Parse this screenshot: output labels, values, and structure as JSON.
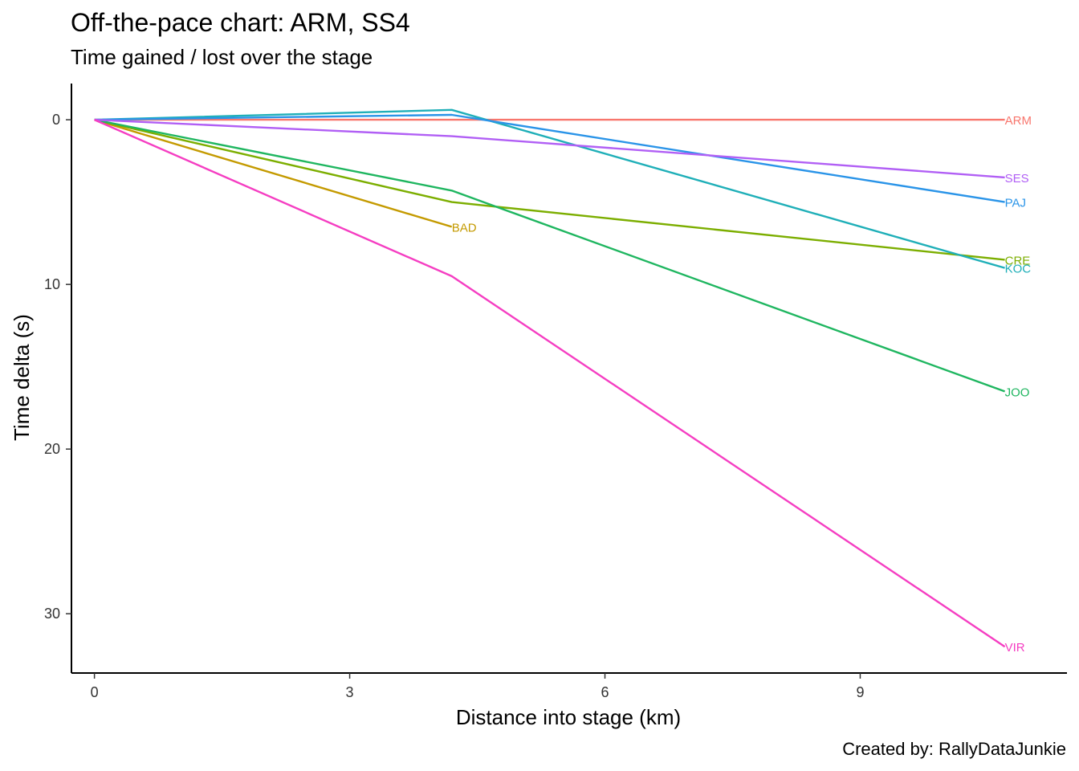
{
  "chart_data": {
    "type": "line",
    "title": "Off-the-pace chart: ARM, SS4",
    "subtitle": "Time gained / lost over the stage",
    "caption": "Created by: RallyDataJunkie",
    "xlabel": "Distance into stage (km)",
    "ylabel": "Time delta (s)",
    "xlim": [
      -0.27,
      11.43
    ],
    "ylim": [
      -2.2,
      33.6
    ],
    "y_reversed": true,
    "x_ticks": [
      0,
      3,
      6,
      9
    ],
    "y_ticks": [
      0,
      10,
      20,
      30
    ],
    "grid": false,
    "legend": "none",
    "series": [
      {
        "name": "ARM",
        "color": "#F8766D",
        "x": [
          0,
          4.2,
          10.7
        ],
        "y": [
          0,
          0,
          0
        ]
      },
      {
        "name": "BAD",
        "color": "#C49A00",
        "x": [
          0,
          4.2
        ],
        "y": [
          0,
          6.5
        ]
      },
      {
        "name": "CRE",
        "color": "#7CAE00",
        "x": [
          0,
          4.2,
          10.7
        ],
        "y": [
          0,
          5.0,
          8.5
        ]
      },
      {
        "name": "JOO",
        "color": "#1FB660",
        "x": [
          0,
          4.2,
          10.7
        ],
        "y": [
          0,
          4.3,
          16.5
        ]
      },
      {
        "name": "KOC",
        "color": "#1FAFB8",
        "x": [
          0,
          4.2,
          10.7
        ],
        "y": [
          0,
          -0.6,
          9.0
        ]
      },
      {
        "name": "PAJ",
        "color": "#2A94E8",
        "x": [
          0,
          4.2,
          10.7
        ],
        "y": [
          0,
          -0.3,
          5.0
        ]
      },
      {
        "name": "SES",
        "color": "#B15FF5",
        "x": [
          0,
          4.2,
          10.7
        ],
        "y": [
          0,
          1.0,
          3.5
        ]
      },
      {
        "name": "VIR",
        "color": "#F53EC2",
        "x": [
          0,
          4.2,
          10.7
        ],
        "y": [
          0,
          9.5,
          32.0
        ]
      }
    ]
  }
}
